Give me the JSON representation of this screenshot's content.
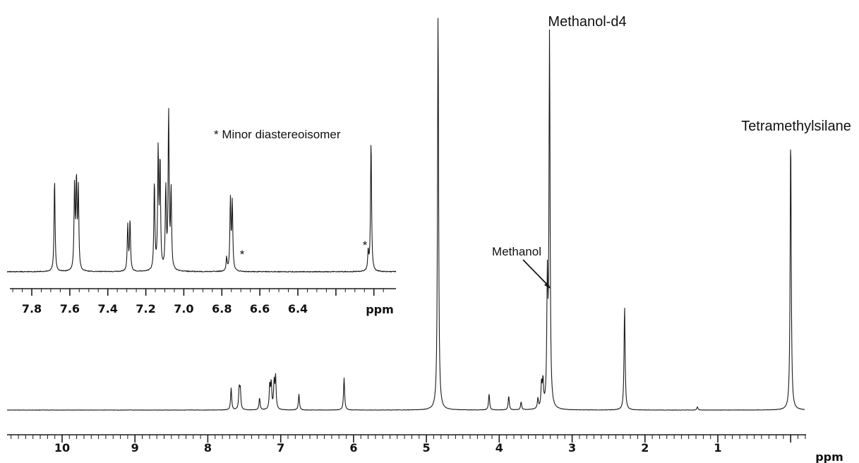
{
  "chart_data": [
    {
      "type": "line",
      "xlabel": "ppm",
      "xlim": [
        11.0,
        -0.3
      ],
      "x_reversed": true,
      "ticks": [
        "10",
        "9",
        "8",
        "7",
        "6",
        "5",
        "4",
        "3",
        "2",
        "1"
      ],
      "tick_values": [
        10,
        9,
        8,
        7,
        6,
        5,
        4,
        3,
        2,
        1
      ],
      "peaks": [
        {
          "ppm": 7.68,
          "height": 0.055
        },
        {
          "ppm": 7.57,
          "height": 0.05
        },
        {
          "ppm": 7.555,
          "height": 0.05
        },
        {
          "ppm": 7.29,
          "height": 0.03
        },
        {
          "ppm": 7.15,
          "height": 0.06
        },
        {
          "ppm": 7.13,
          "height": 0.065
        },
        {
          "ppm": 7.09,
          "height": 0.065
        },
        {
          "ppm": 7.07,
          "height": 0.08
        },
        {
          "ppm": 6.75,
          "height": 0.04
        },
        {
          "ppm": 6.13,
          "height": 0.08
        },
        {
          "ppm": 4.84,
          "height": 1.0
        },
        {
          "ppm": 4.14,
          "height": 0.04
        },
        {
          "ppm": 3.87,
          "height": 0.035
        },
        {
          "ppm": 3.7,
          "height": 0.02
        },
        {
          "ppm": 3.47,
          "height": 0.025
        },
        {
          "ppm": 3.42,
          "height": 0.06
        },
        {
          "ppm": 3.4,
          "height": 0.065
        },
        {
          "ppm": 3.34,
          "height": 0.3
        },
        {
          "ppm": 3.31,
          "height": 0.93
        },
        {
          "ppm": 2.28,
          "height": 0.26
        },
        {
          "ppm": 1.28,
          "height": 0.008
        },
        {
          "ppm": 0.0,
          "height": 0.69
        }
      ],
      "annotations": [
        {
          "text": "Methanol-d4",
          "ppm": 3.31
        },
        {
          "text": "Methanol",
          "ppm": 3.34
        },
        {
          "text": "Tetramethylsilane",
          "ppm": 0.0
        }
      ]
    },
    {
      "type": "line",
      "xlabel": "ppm",
      "xlim": [
        8.0,
        5.95
      ],
      "x_reversed": true,
      "ticks": [
        "7.8",
        "7.6",
        "7.4",
        "7.2",
        "7.0",
        "6.8",
        "6.6",
        "6.4"
      ],
      "tick_values": [
        7.8,
        7.6,
        7.4,
        7.2,
        7.0,
        6.8,
        6.6,
        6.4
      ],
      "peaks": [
        {
          "ppm": 7.68,
          "height": 0.59
        },
        {
          "ppm": 7.575,
          "height": 0.53
        },
        {
          "ppm": 7.565,
          "height": 0.56
        },
        {
          "ppm": 7.555,
          "height": 0.51
        },
        {
          "ppm": 7.295,
          "height": 0.29
        },
        {
          "ppm": 7.283,
          "height": 0.32
        },
        {
          "ppm": 7.155,
          "height": 0.56
        },
        {
          "ppm": 7.135,
          "height": 0.75
        },
        {
          "ppm": 7.125,
          "height": 0.68
        },
        {
          "ppm": 7.095,
          "height": 0.52
        },
        {
          "ppm": 7.08,
          "height": 1.0
        },
        {
          "ppm": 7.067,
          "height": 0.5
        },
        {
          "ppm": 6.775,
          "height": 0.085
        },
        {
          "ppm": 6.755,
          "height": 0.45
        },
        {
          "ppm": 6.745,
          "height": 0.43
        },
        {
          "ppm": 6.03,
          "height": 0.12
        },
        {
          "ppm": 6.015,
          "height": 0.84
        }
      ],
      "annotations": [
        {
          "text": "* Minor diastereoisomer"
        },
        {
          "text": "*",
          "ppm": 6.775
        },
        {
          "text": "*",
          "ppm": 6.03
        }
      ]
    }
  ]
}
